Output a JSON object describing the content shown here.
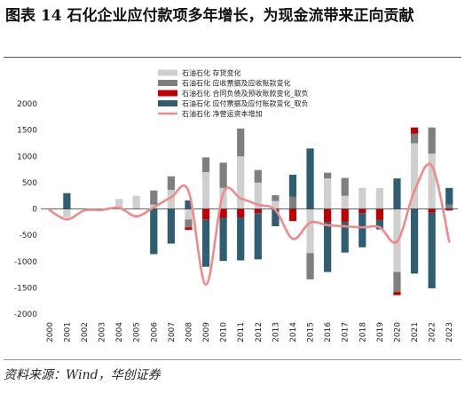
{
  "figure": {
    "title": "图表 14   石化企业应付款项多年增长，为现金流带来正向贡献",
    "source": "资料来源：Wind，华创证券"
  },
  "colors": {
    "inventory": "#cfcfcf",
    "receivable": "#7f7f7f",
    "contract": "#c00000",
    "payable": "#2e5e70",
    "line": "#f08a8a"
  },
  "chart_data": {
    "type": "bar",
    "stacked": true,
    "categories": [
      "2000",
      "2001",
      "2002",
      "2003",
      "2004",
      "2005",
      "2006",
      "2007",
      "2008",
      "2009",
      "2010",
      "2011",
      "2012",
      "2013",
      "2014",
      "2015",
      "2016",
      "2017",
      "2018",
      "2019",
      "2020",
      "2021",
      "2022",
      "2023"
    ],
    "ylim": [
      -2000,
      2000
    ],
    "yticks": [
      -2000,
      -1500,
      -1000,
      -500,
      0,
      500,
      1000,
      1500,
      2000
    ],
    "legend_position": "top-right",
    "grid": false,
    "series": [
      {
        "name": "石油石化 存货变化",
        "key": "inventory",
        "kind": "bar",
        "values": [
          0,
          -160,
          0,
          0,
          190,
          250,
          80,
          360,
          -200,
          700,
          400,
          1000,
          500,
          150,
          0,
          -840,
          580,
          250,
          400,
          400,
          -1200,
          1250,
          1050,
          0
        ]
      },
      {
        "name": "石油石化 应收票据及应收账款变化",
        "key": "receivable",
        "kind": "bar",
        "values": [
          0,
          0,
          0,
          0,
          0,
          0,
          270,
          260,
          -150,
          280,
          480,
          530,
          240,
          110,
          230,
          -500,
          110,
          340,
          0,
          0,
          -380,
          180,
          500,
          80
        ]
      },
      {
        "name": "石油石化 合同负债及预收账款变化_取负",
        "key": "contract",
        "kind": "bar",
        "values": [
          0,
          0,
          0,
          0,
          0,
          0,
          0,
          0,
          -50,
          -200,
          -170,
          -160,
          -80,
          -20,
          -230,
          0,
          -250,
          -250,
          -80,
          -210,
          -60,
          120,
          -70,
          -30
        ]
      },
      {
        "name": "石油石化 应付票据及应付账款变化_取负",
        "key": "payable",
        "kind": "bar",
        "values": [
          0,
          300,
          0,
          0,
          0,
          0,
          -860,
          -660,
          160,
          -900,
          -820,
          -820,
          -880,
          -310,
          420,
          1150,
          -950,
          -580,
          -650,
          -180,
          580,
          -1230,
          -1440,
          320
        ]
      },
      {
        "name": "石油石化 净营运资本增加",
        "key": "line",
        "kind": "line",
        "values": [
          -20,
          -200,
          -30,
          -20,
          20,
          -140,
          30,
          220,
          340,
          -1440,
          300,
          200,
          80,
          -20,
          -570,
          -260,
          -310,
          -330,
          -350,
          -350,
          -620,
          340,
          820,
          -620
        ]
      }
    ]
  }
}
